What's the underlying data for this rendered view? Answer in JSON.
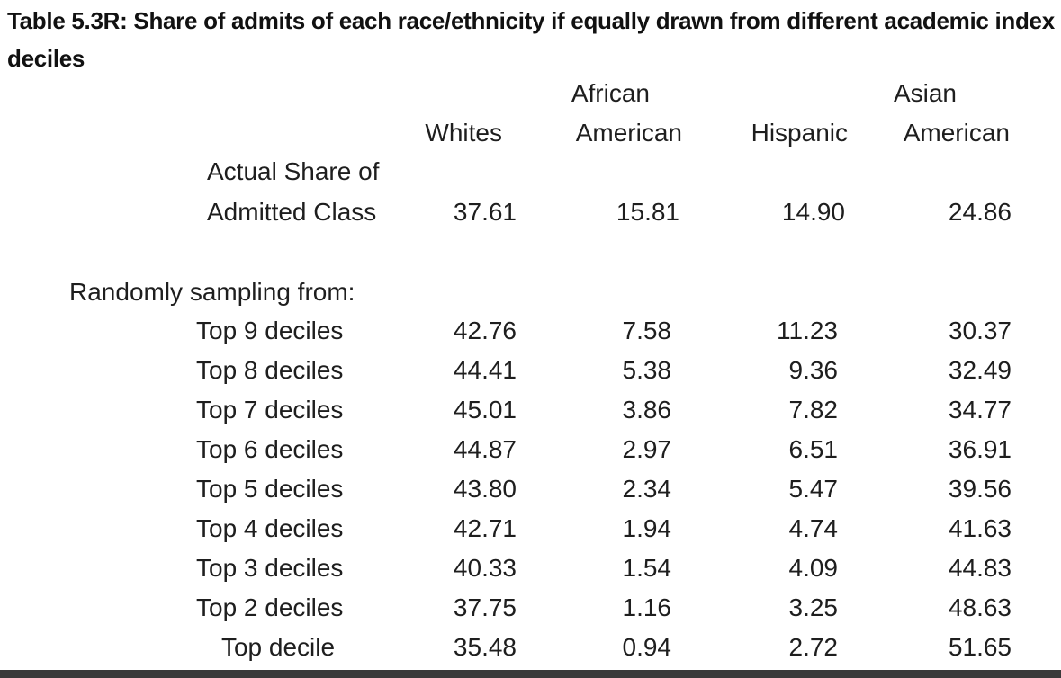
{
  "title": "Table 5.3R: Share of admits of each race/ethnicity if equally drawn from different academic index deciles",
  "columns": [
    {
      "line1": "",
      "line2": "Whites"
    },
    {
      "line1": "African",
      "line2": "American"
    },
    {
      "line1": "",
      "line2": "Hispanic"
    },
    {
      "line1": "Asian",
      "line2": "American"
    }
  ],
  "actual": {
    "label_line1": "Actual Share of",
    "label_line2": "Admitted Class",
    "values": [
      "37.61",
      "15.81",
      "14.90",
      "24.86"
    ]
  },
  "sampling_heading": "Randomly sampling from:",
  "rows": [
    {
      "label": "Top 9 deciles",
      "values": [
        "42.76",
        "7.58",
        "11.23",
        "30.37"
      ]
    },
    {
      "label": "Top 8 deciles",
      "values": [
        "44.41",
        "5.38",
        "9.36",
        "32.49"
      ]
    },
    {
      "label": "Top 7 deciles",
      "values": [
        "45.01",
        "3.86",
        "7.82",
        "34.77"
      ]
    },
    {
      "label": "Top 6 deciles",
      "values": [
        "44.87",
        "2.97",
        "6.51",
        "36.91"
      ]
    },
    {
      "label": "Top 5 deciles",
      "values": [
        "43.80",
        "2.34",
        "5.47",
        "39.56"
      ]
    },
    {
      "label": "Top 4 deciles",
      "values": [
        "42.71",
        "1.94",
        "4.74",
        "41.63"
      ]
    },
    {
      "label": "Top 3 deciles",
      "values": [
        "40.33",
        "1.54",
        "4.09",
        "44.83"
      ]
    },
    {
      "label": "Top 2 deciles",
      "values": [
        "37.75",
        "1.16",
        "3.25",
        "48.63"
      ]
    },
    {
      "label": "Top decile",
      "values": [
        "35.48",
        "0.94",
        "2.72",
        "51.65"
      ]
    }
  ]
}
